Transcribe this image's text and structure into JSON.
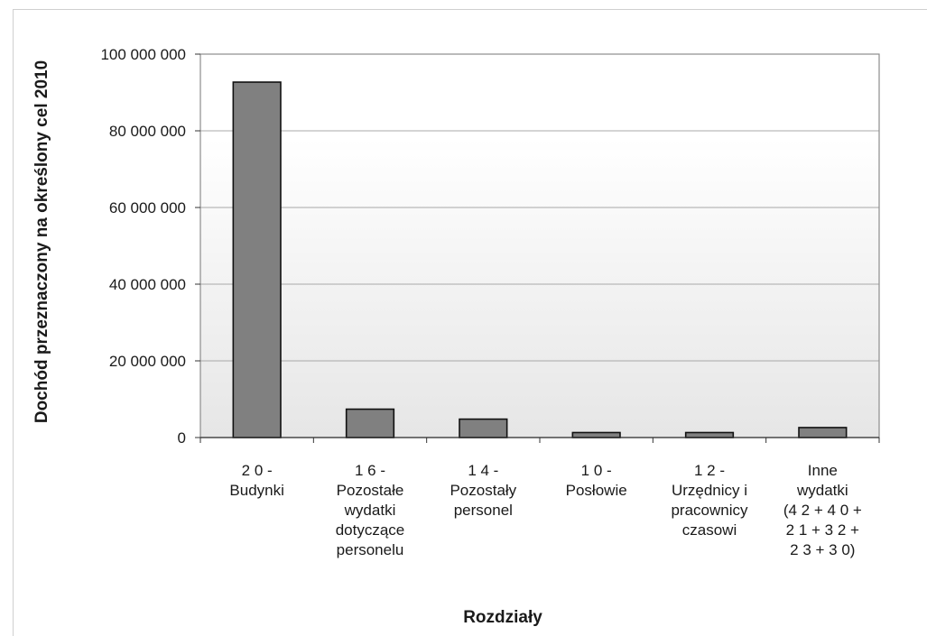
{
  "chart_data": {
    "type": "bar",
    "title": "",
    "xlabel": "Rozdziały",
    "ylabel": "Dochód przeznaczony na określony cel 2010",
    "ylim": [
      0,
      100000000
    ],
    "yticks": [
      0,
      20000000,
      40000000,
      60000000,
      80000000,
      100000000
    ],
    "ytick_labels": [
      "0",
      "20 000 000",
      "40 000 000",
      "60 000 000",
      "80 000 000",
      "100 000 000"
    ],
    "categories": [
      [
        "2 0 -",
        "Budynki"
      ],
      [
        "1 6 -",
        "Pozostałe",
        "wydatki",
        "dotyczące",
        "personelu"
      ],
      [
        "1 4 -",
        "Pozostały",
        "personel"
      ],
      [
        "1 0 -",
        "Posłowie"
      ],
      [
        "1 2 -",
        "Urzędnicy i",
        "pracownicy",
        "czasowi"
      ],
      [
        "Inne",
        "wydatki",
        "(4 2 + 4 0 +",
        "2 1 + 3 2 +",
        "2 3 + 3 0)"
      ]
    ],
    "values": [
      92700000,
      7400000,
      4800000,
      1300000,
      1300000,
      2600000
    ],
    "grid": true,
    "bar_color": "#808080",
    "colors": {
      "bar_fill": "#808080",
      "bar_stroke": "#111111",
      "frame": "#8c8c8c",
      "grid": "#a8a8a8",
      "plot_bg_top": "#ffffff",
      "plot_bg_bottom": "#e6e6e6"
    }
  }
}
